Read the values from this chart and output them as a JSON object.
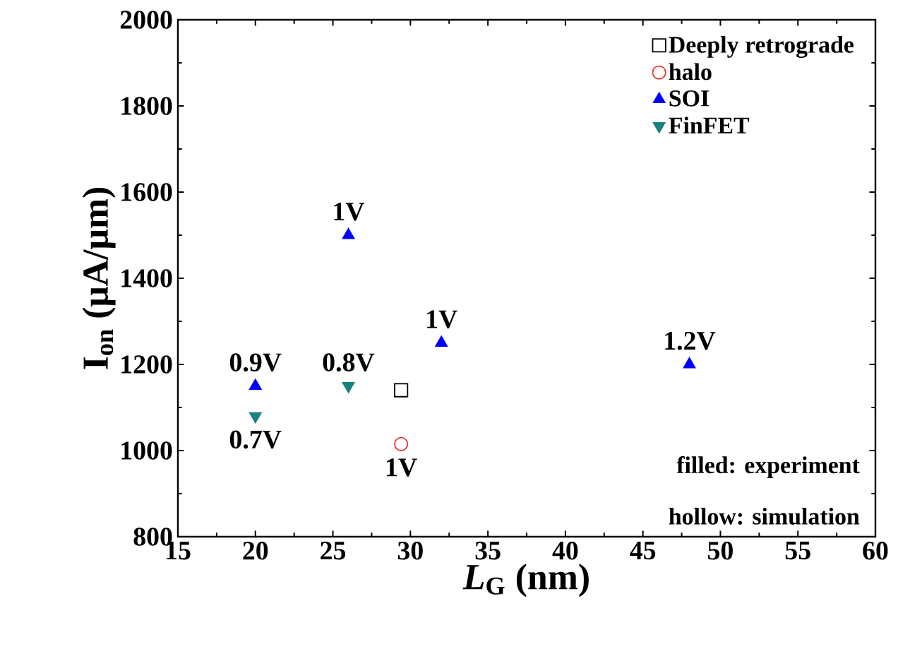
{
  "chart_data": {
    "type": "scatter",
    "xlabel": "*L*$_{G}$ (nm)",
    "ylabel": "I$_{on}$ (μA/μm)",
    "xlim": [
      15,
      60
    ],
    "ylim": [
      800,
      2000
    ],
    "xticks": [
      15,
      20,
      25,
      30,
      35,
      40,
      45,
      50,
      55,
      60
    ],
    "yticks": [
      800,
      1000,
      1200,
      1400,
      1600,
      1800,
      2000
    ],
    "grid": false,
    "legend": "top right",
    "series": [
      {
        "name": "Deeply retrograde",
        "color": "#000000",
        "marker": "square",
        "x": [
          29.4
        ],
        "values": [
          1140
        ]
      },
      {
        "name": "halo",
        "color": "#e8392c",
        "marker": "circle",
        "x": [
          29.4
        ],
        "values": [
          1015
        ]
      },
      {
        "name": "SOI",
        "color": "#0000ff",
        "marker": "triangle",
        "x": [
          20,
          26,
          32,
          48
        ],
        "values": [
          1150,
          1500,
          1250,
          1200
        ]
      },
      {
        "name": "FinFET",
        "color": "#1a8080",
        "marker": "triangle down",
        "x": [
          20,
          26
        ],
        "values": [
          1080,
          1150
        ]
      }
    ],
    "annotations": [
      {
        "text": "0.9V",
        "x": 20,
        "y": 1150
      },
      {
        "text": "0.7V",
        "x": 20,
        "y": 1080
      },
      {
        "text": "1V",
        "x": 26,
        "y": 1500
      },
      {
        "text": "0.8V",
        "x": 26,
        "y": 1150
      },
      {
        "text": "1V",
        "x": 32,
        "y": 1250
      },
      {
        "text": "1.2V",
        "x": 48,
        "y": 1200
      },
      {
        "text": "1V",
        "x": 29.4,
        "y": 1015
      },
      "filled: experiment",
      "hollow: simulation"
    ]
  }
}
